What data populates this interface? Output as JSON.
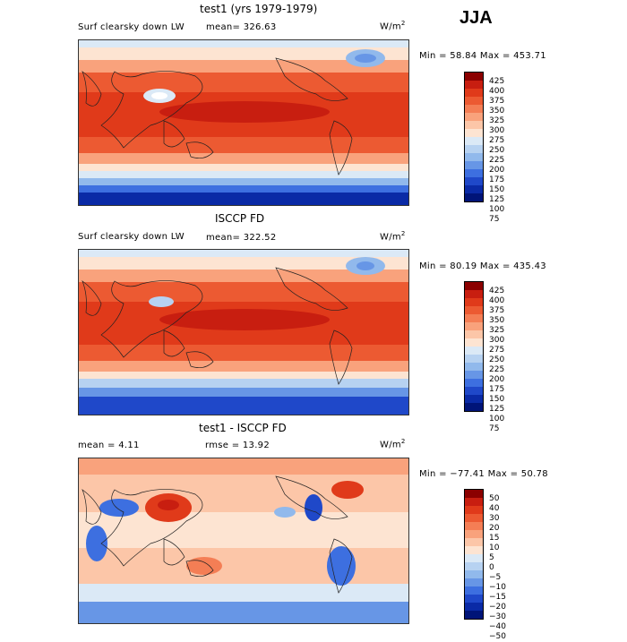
{
  "season": "JJA",
  "panels": [
    {
      "title": "test1 (yrs 1979-1979)",
      "variable": "Surf clearsky down LW",
      "stat_text": "mean=  326.63",
      "units_base": "W/m",
      "units_exp": "2",
      "minmax": "Min =  58.84 Max = 453.71",
      "colorbar_labels": [
        "425",
        "400",
        "375",
        "350",
        "325",
        "300",
        "275",
        "250",
        "225",
        "200",
        "175",
        "150",
        "125",
        "100",
        "75"
      ],
      "colorbar_colors": [
        "#8b0000",
        "#c81e10",
        "#e03a1a",
        "#ec5a32",
        "#f47e55",
        "#f9a27c",
        "#fcc6a8",
        "#fde4d2",
        "#dbe9f6",
        "#b7d2f1",
        "#91b9ec",
        "#6796e6",
        "#3d6fe0",
        "#1f48c9",
        "#0a2aa6",
        "#001478"
      ]
    },
    {
      "title": "ISCCP FD",
      "variable": "Surf clearsky down LW",
      "stat_text": "mean=  322.52",
      "units_base": "W/m",
      "units_exp": "2",
      "minmax": "Min =  80.19 Max = 435.43",
      "colorbar_labels": [
        "425",
        "400",
        "375",
        "350",
        "325",
        "300",
        "275",
        "250",
        "225",
        "200",
        "175",
        "150",
        "125",
        "100",
        "75"
      ],
      "colorbar_colors": [
        "#8b0000",
        "#c81e10",
        "#e03a1a",
        "#ec5a32",
        "#f47e55",
        "#f9a27c",
        "#fcc6a8",
        "#fde4d2",
        "#dbe9f6",
        "#b7d2f1",
        "#91b9ec",
        "#6796e6",
        "#3d6fe0",
        "#1f48c9",
        "#0a2aa6",
        "#001478"
      ]
    },
    {
      "title": "test1 - ISCCP FD",
      "stat_text": "mean =    4.11",
      "rmse_text": "rmse =   13.92",
      "units_base": "W/m",
      "units_exp": "2",
      "minmax": "Min = −77.41 Max =   50.78",
      "colorbar_labels": [
        "50",
        "40",
        "30",
        "20",
        "15",
        "10",
        "5",
        "0",
        "−5",
        "−10",
        "−15",
        "−20",
        "−30",
        "−40",
        "−50"
      ],
      "colorbar_colors": [
        "#8b0000",
        "#c81e10",
        "#e03a1a",
        "#ec5a32",
        "#f47e55",
        "#f9a27c",
        "#fcc6a8",
        "#fde4d2",
        "#dbe9f6",
        "#b7d2f1",
        "#91b9ec",
        "#6796e6",
        "#3d6fe0",
        "#1f48c9",
        "#0a2aa6",
        "#001478"
      ]
    }
  ]
}
